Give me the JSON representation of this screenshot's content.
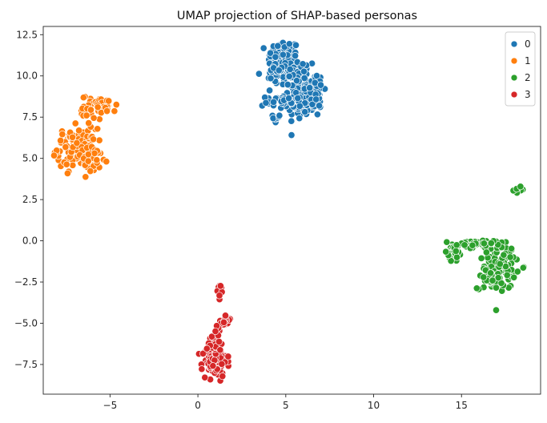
{
  "chart_data": {
    "type": "scatter",
    "title": "UMAP projection of SHAP-based personas",
    "xlabel": "",
    "ylabel": "",
    "xlim": [
      -8.8,
      19.5
    ],
    "ylim": [
      -9.3,
      13.0
    ],
    "xticks": [
      -5,
      0,
      5,
      10,
      15
    ],
    "yticks": [
      -7.5,
      -5.0,
      -2.5,
      0.0,
      2.5,
      5.0,
      7.5,
      10.0,
      12.5
    ],
    "xtick_labels": [
      "−5",
      "0",
      "5",
      "10",
      "15"
    ],
    "ytick_labels": [
      "−7.5",
      "−5.0",
      "−2.5",
      "0.0",
      "2.5",
      "5.0",
      "7.5",
      "10.0",
      "12.5"
    ],
    "grid": false,
    "legend": {
      "placement": "top-right",
      "entries": [
        "0",
        "1",
        "2",
        "3"
      ]
    },
    "series": [
      {
        "name": "0",
        "color": "#1f77b4",
        "clusters": [
          {
            "cx": 4.9,
            "cy": 11.0,
            "sx": 0.45,
            "sy": 0.6,
            "n": 90
          },
          {
            "cx": 5.7,
            "cy": 9.8,
            "sx": 0.55,
            "sy": 0.7,
            "n": 70
          },
          {
            "cx": 6.1,
            "cy": 8.3,
            "sx": 0.5,
            "sy": 0.45,
            "n": 80
          },
          {
            "cx": 4.9,
            "cy": 8.4,
            "sx": 0.5,
            "sy": 0.25,
            "n": 40
          },
          {
            "cx": 4.5,
            "cy": 7.5,
            "sx": 0.12,
            "sy": 0.2,
            "n": 8
          },
          {
            "cx": 6.7,
            "cy": 9.2,
            "sx": 0.25,
            "sy": 0.4,
            "n": 25
          },
          {
            "cx": 4.3,
            "cy": 10.3,
            "sx": 0.2,
            "sy": 0.6,
            "n": 20
          }
        ]
      },
      {
        "name": "1",
        "color": "#ff7f0e",
        "clusters": [
          {
            "cx": -6.9,
            "cy": 5.6,
            "sx": 0.55,
            "sy": 0.6,
            "n": 120
          },
          {
            "cx": -6.0,
            "cy": 4.9,
            "sx": 0.45,
            "sy": 0.4,
            "n": 40
          },
          {
            "cx": -5.6,
            "cy": 8.2,
            "sx": 0.5,
            "sy": 0.3,
            "n": 45
          },
          {
            "cx": -6.3,
            "cy": 7.7,
            "sx": 0.2,
            "sy": 0.3,
            "n": 12
          }
        ]
      },
      {
        "name": "2",
        "color": "#2ca02c",
        "clusters": [
          {
            "cx": 17.2,
            "cy": -1.5,
            "sx": 0.45,
            "sy": 0.7,
            "n": 110
          },
          {
            "cx": 15.6,
            "cy": -0.25,
            "sx": 0.6,
            "sy": 0.15,
            "n": 40
          },
          {
            "cx": 14.5,
            "cy": -0.8,
            "sx": 0.3,
            "sy": 0.25,
            "n": 30
          },
          {
            "cx": 16.6,
            "cy": -2.3,
            "sx": 0.35,
            "sy": 0.3,
            "n": 25
          },
          {
            "cx": 18.3,
            "cy": 3.1,
            "sx": 0.15,
            "sy": 0.12,
            "n": 10
          }
        ]
      },
      {
        "name": "3",
        "color": "#d62728",
        "clusters": [
          {
            "cx": 0.95,
            "cy": -7.3,
            "sx": 0.35,
            "sy": 0.45,
            "n": 110
          },
          {
            "cx": 1.0,
            "cy": -6.2,
            "sx": 0.2,
            "sy": 0.35,
            "n": 20
          },
          {
            "cx": 1.5,
            "cy": -4.8,
            "sx": 0.15,
            "sy": 0.2,
            "n": 15
          },
          {
            "cx": 1.3,
            "cy": -3.0,
            "sx": 0.1,
            "sy": 0.25,
            "n": 8
          },
          {
            "cx": 1.15,
            "cy": -5.5,
            "sx": 0.1,
            "sy": 0.2,
            "n": 5
          }
        ]
      }
    ]
  }
}
